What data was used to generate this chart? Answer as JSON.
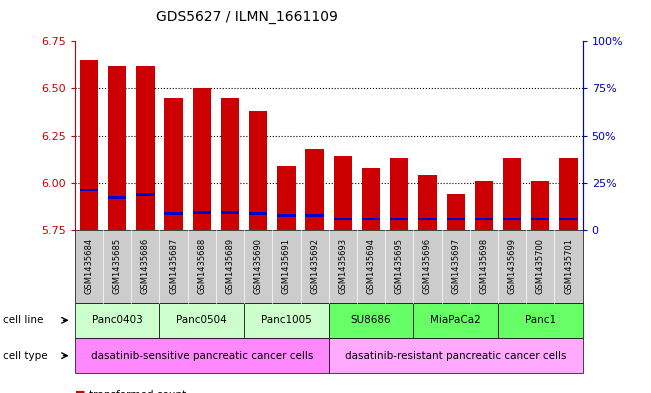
{
  "title": "GDS5627 / ILMN_1661109",
  "samples": [
    "GSM1435684",
    "GSM1435685",
    "GSM1435686",
    "GSM1435687",
    "GSM1435688",
    "GSM1435689",
    "GSM1435690",
    "GSM1435691",
    "GSM1435692",
    "GSM1435693",
    "GSM1435694",
    "GSM1435695",
    "GSM1435696",
    "GSM1435697",
    "GSM1435698",
    "GSM1435699",
    "GSM1435700",
    "GSM1435701"
  ],
  "transformed_count": [
    6.65,
    6.62,
    6.62,
    6.45,
    6.5,
    6.45,
    6.38,
    6.09,
    6.18,
    6.14,
    6.08,
    6.13,
    6.04,
    5.94,
    6.01,
    6.13,
    6.01,
    6.13
  ],
  "percentile_rank": [
    5.955,
    5.915,
    5.93,
    5.83,
    5.835,
    5.835,
    5.83,
    5.82,
    5.82,
    5.8,
    5.8,
    5.8,
    5.8,
    5.8,
    5.8,
    5.8,
    5.8,
    5.8
  ],
  "bar_base": 5.75,
  "ylim": [
    5.75,
    6.75
  ],
  "yticks": [
    5.75,
    6.0,
    6.25,
    6.5,
    6.75
  ],
  "right_ytick_pcts": [
    0,
    25,
    50,
    75,
    100
  ],
  "right_ytick_labels": [
    "0",
    "25%",
    "50%",
    "75%",
    "100%"
  ],
  "cell_line_groups": [
    {
      "label": "Panc0403",
      "start": 0,
      "end": 3,
      "color": "#ccffcc"
    },
    {
      "label": "Panc0504",
      "start": 3,
      "end": 6,
      "color": "#ccffcc"
    },
    {
      "label": "Panc1005",
      "start": 6,
      "end": 9,
      "color": "#ccffcc"
    },
    {
      "label": "SU8686",
      "start": 9,
      "end": 12,
      "color": "#66ff66"
    },
    {
      "label": "MiaPaCa2",
      "start": 12,
      "end": 15,
      "color": "#66ff66"
    },
    {
      "label": "Panc1",
      "start": 15,
      "end": 18,
      "color": "#66ff66"
    }
  ],
  "cell_type_groups": [
    {
      "label": "dasatinib-sensitive pancreatic cancer cells",
      "start": 0,
      "end": 9,
      "color": "#ff88ff"
    },
    {
      "label": "dasatinib-resistant pancreatic cancer cells",
      "start": 9,
      "end": 18,
      "color": "#ffaaff"
    }
  ],
  "bar_color_red": "#cc0000",
  "bar_color_blue": "#0000cc",
  "axis_color_left": "#cc0000",
  "axis_color_right": "#0000cc",
  "background_color": "#ffffff",
  "sample_bg_color": "#cccccc",
  "cell_line_label": "cell line",
  "cell_type_label": "cell type",
  "blue_bar_height": 0.013,
  "grid_lines": [
    6.0,
    6.25,
    6.5
  ]
}
